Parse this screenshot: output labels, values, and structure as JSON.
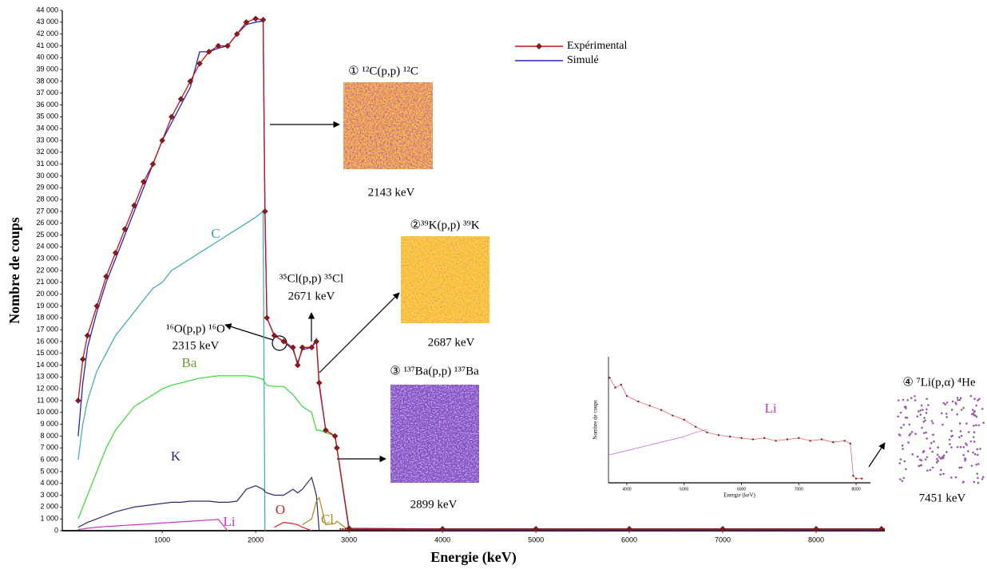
{
  "chart_data": [
    {
      "type": "line",
      "xlabel": "Energie (keV)",
      "ylabel": "Nombre de coups",
      "x": [
        100,
        150,
        200,
        300,
        400,
        500,
        600,
        700,
        800,
        900,
        1000,
        1100,
        1200,
        1300,
        1400,
        1500,
        1600,
        1700,
        1800,
        1900,
        2000,
        2080,
        2100,
        2120,
        2200,
        2300,
        2400,
        2450,
        2500,
        2600,
        2650,
        2680,
        2750,
        2850,
        2870,
        3000,
        4000,
        5000,
        6000,
        7000,
        8000,
        8700
      ],
      "series": [
        {
          "name": "Expérimental",
          "color": "#cc1111",
          "marker": "diamond",
          "values": [
            11000,
            14500,
            16500,
            19000,
            21500,
            23500,
            25500,
            27500,
            29500,
            31000,
            33000,
            35000,
            36500,
            38000,
            39500,
            40500,
            41000,
            41000,
            42000,
            43000,
            43300,
            43200,
            27000,
            18000,
            16500,
            16000,
            15500,
            14000,
            15500,
            15500,
            16000,
            12500,
            8500,
            8000,
            7000,
            200,
            150,
            150,
            150,
            150,
            150,
            150
          ]
        },
        {
          "name": "Simulé",
          "color": "#2323c8",
          "values": [
            8000,
            12500,
            15500,
            18500,
            21000,
            23000,
            25000,
            27000,
            29000,
            31000,
            33000,
            34500,
            36000,
            37500,
            40500,
            40500,
            40800,
            41000,
            42000,
            42800,
            43000,
            43100,
            27000,
            18000,
            16500,
            16000,
            15300,
            14200,
            15300,
            15500,
            16200,
            12300,
            8500,
            8000,
            7000,
            100,
            50,
            50,
            50,
            50,
            50,
            50
          ]
        }
      ],
      "components": [
        {
          "name": "C",
          "color": "#3aa8b0",
          "values": [
            6000,
            9000,
            11000,
            13500,
            15000,
            16500,
            17500,
            18500,
            19500,
            20500,
            21000,
            22000,
            22500,
            23000,
            23500,
            24000,
            24500,
            25000,
            25500,
            26000,
            26500,
            27000,
            0,
            null,
            null,
            null,
            null,
            null,
            null,
            null,
            null,
            null,
            null,
            null,
            null,
            null,
            null,
            null,
            null,
            null,
            null,
            null
          ]
        },
        {
          "name": "Ba",
          "color": "#33dd33",
          "values": [
            1000,
            2000,
            3000,
            5000,
            7000,
            8500,
            9500,
            10500,
            11000,
            11500,
            12000,
            12300,
            12500,
            12700,
            12900,
            13000,
            13100,
            13100,
            13100,
            13100,
            13000,
            12800,
            12500,
            12300,
            12200,
            12200,
            11500,
            11000,
            10500,
            10000,
            8500,
            8500,
            8300,
            8000,
            7000,
            0,
            null,
            null,
            null,
            null,
            null,
            null
          ]
        },
        {
          "name": "K",
          "color": "#2a2a70",
          "values": [
            300,
            500,
            700,
            1000,
            1300,
            1600,
            1800,
            2000,
            2100,
            2200,
            2300,
            2400,
            2400,
            2500,
            2500,
            2500,
            2400,
            2400,
            2500,
            3500,
            3800,
            3500,
            3300,
            3200,
            3000,
            3000,
            3500,
            3200,
            3500,
            4500,
            3000,
            0,
            null,
            null,
            null,
            null,
            null,
            null,
            null,
            null,
            null,
            null
          ]
        },
        {
          "name": "Li",
          "color": "#cc33cc",
          "values": [
            100,
            150,
            200,
            300,
            350,
            400,
            450,
            500,
            550,
            600,
            650,
            700,
            750,
            800,
            850,
            900,
            950,
            0,
            null,
            null,
            null,
            null,
            null,
            null,
            null,
            null,
            null,
            null,
            null,
            null,
            null,
            null,
            null,
            null,
            null,
            null,
            null,
            null,
            null,
            null,
            null,
            null
          ]
        },
        {
          "name": "O",
          "color": "#cc2222",
          "values": [
            null,
            null,
            null,
            null,
            null,
            null,
            null,
            null,
            null,
            null,
            null,
            null,
            null,
            null,
            null,
            null,
            null,
            null,
            null,
            null,
            null,
            null,
            null,
            null,
            300,
            700,
            600,
            500,
            300,
            0,
            null,
            null,
            null,
            null,
            null,
            null,
            null,
            null,
            null,
            null,
            null,
            null
          ]
        },
        {
          "name": "Cl",
          "color": "#a88a20",
          "values": [
            null,
            null,
            null,
            null,
            null,
            null,
            null,
            null,
            null,
            null,
            null,
            null,
            null,
            null,
            null,
            null,
            null,
            null,
            null,
            null,
            null,
            null,
            null,
            null,
            null,
            null,
            null,
            null,
            500,
            1000,
            2500,
            2800,
            500,
            600,
            800,
            0,
            null,
            null,
            null,
            null,
            null,
            null
          ]
        }
      ],
      "annotations": [
        "① ¹²C(p,p) ¹²C",
        "2143 keV",
        "②³⁹K(p,p) ³⁹K",
        "2687 keV",
        "③ ¹³⁷Ba(p,p) ¹³⁷Ba",
        "2899 keV",
        "³⁵Cl(p,p) ³⁵Cl",
        "2671 keV",
        "¹⁶O(p,p) ¹⁶O",
        "2315 keV",
        "④ ⁷Li(p,α) ⁴He",
        "7451 keV"
      ],
      "xlim": [
        -70,
        8735
      ],
      "xticks": [
        1000,
        2000,
        3000,
        4000,
        5000,
        6000,
        7000,
        8000
      ],
      "ylim": [
        0,
        44000
      ],
      "yticks": [
        0,
        {
          "value": 1000,
          "label": "1 000"
        },
        {
          "value": 2000,
          "label": "2 000"
        },
        {
          "value": 3000,
          "label": "3 000"
        },
        {
          "value": 4000,
          "label": "4 000"
        },
        {
          "value": 5000,
          "label": "5 000"
        },
        {
          "value": 6000,
          "label": "6 000"
        },
        {
          "value": 7000,
          "label": "7 000"
        },
        {
          "value": 8000,
          "label": "8 000"
        },
        {
          "value": 9000,
          "label": "9 000"
        },
        {
          "value": 10000,
          "label": "10 000"
        },
        {
          "value": 11000,
          "label": "11 000"
        },
        {
          "value": 12000,
          "label": "12 000"
        },
        {
          "value": 13000,
          "label": "13 000"
        },
        {
          "value": 14000,
          "label": "14 000"
        },
        {
          "value": 15000,
          "label": "15 000"
        },
        {
          "value": 16000,
          "label": "16 000"
        },
        {
          "value": 17000,
          "label": "17 000"
        },
        {
          "value": 18000,
          "label": "18 000"
        },
        {
          "value": 19000,
          "label": "19 000"
        },
        {
          "value": 20000,
          "label": "20 000"
        },
        {
          "value": 21000,
          "label": "21 000"
        },
        {
          "value": 22000,
          "label": "22 000"
        },
        {
          "value": 23000,
          "label": "23 000"
        },
        {
          "value": 24000,
          "label": "24 000"
        },
        {
          "value": 25000,
          "label": "25 000"
        },
        {
          "value": 26000,
          "label": "26 000"
        },
        {
          "value": 27000,
          "label": "27 000"
        },
        {
          "value": 28000,
          "label": "28 000"
        },
        {
          "value": 29000,
          "label": "29 000"
        },
        {
          "value": 30000,
          "label": "30 000"
        },
        {
          "value": 31000,
          "label": "31 000"
        },
        {
          "value": 32000,
          "label": "32 000"
        },
        {
          "value": 33000,
          "label": "33 000"
        },
        {
          "value": 34000,
          "label": "34 000"
        },
        {
          "value": 35000,
          "label": "35 000"
        },
        {
          "value": 36000,
          "label": "36 000"
        },
        {
          "value": 37000,
          "label": "37 000"
        },
        {
          "value": 38000,
          "label": "38 000"
        },
        {
          "value": 39000,
          "label": "39 000"
        },
        {
          "value": 40000,
          "label": "40 000"
        },
        {
          "value": 41000,
          "label": "41 000"
        },
        {
          "value": 42000,
          "label": "42 000"
        },
        {
          "value": 43000,
          "label": "43 000"
        },
        {
          "value": 44000,
          "label": "44 000"
        }
      ],
      "legend": "top-right"
    },
    {
      "type": "line",
      "xlabel": "Energie (keV)",
      "ylabel": "Nombre de coups",
      "x": [
        3700,
        3800,
        3900,
        4000,
        4200,
        4400,
        4600,
        4800,
        5000,
        5200,
        5400,
        5600,
        5800,
        6000,
        6200,
        6400,
        6600,
        6800,
        7000,
        7200,
        7400,
        7600,
        7800,
        7900,
        7950,
        8000,
        8100
      ],
      "series": [
        {
          "color": "#e05555",
          "marker": "dot",
          "values": [
            75,
            68,
            70,
            62,
            58,
            55,
            52,
            48,
            45,
            40,
            36,
            34,
            33,
            32,
            31,
            32,
            30,
            31,
            32,
            30,
            31,
            29,
            30,
            28,
            5,
            3,
            3
          ]
        },
        {
          "name": "Li",
          "color": "#c060d0",
          "values": [
            20,
            21,
            22,
            23,
            25,
            27,
            29,
            31,
            33,
            36,
            38,
            null,
            null,
            null,
            null,
            null,
            null,
            null,
            null,
            null,
            null,
            null,
            null,
            null,
            null,
            null,
            null
          ]
        }
      ],
      "xlim": [
        3680,
        8250
      ],
      "xticks": [
        4000,
        5000,
        6000,
        7000,
        8000
      ],
      "ylim": [
        0,
        90
      ]
    }
  ]
}
